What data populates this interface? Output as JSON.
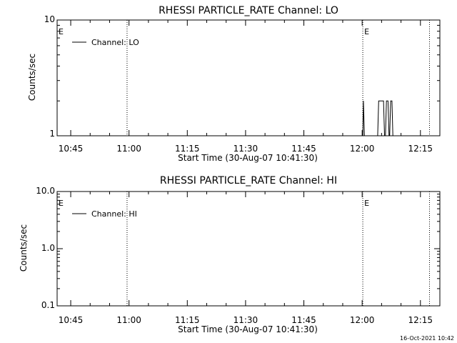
{
  "footer_timestamp": "16-Oct-2021 10:42",
  "chart_data": [
    {
      "type": "line",
      "title": "RHESSI PARTICLE_RATE Channel: LO",
      "xlabel": "Start Time (30-Aug-07 10:41:30)",
      "ylabel": "Counts/sec",
      "y_scale": "log",
      "ylim": [
        1,
        10
      ],
      "ytick_labels": [
        "1",
        "10"
      ],
      "xlim": [
        "10:41:30",
        "12:20:00"
      ],
      "xtick_labels": [
        "10:45",
        "11:00",
        "11:15",
        "11:30",
        "11:45",
        "12:00",
        "12:15"
      ],
      "legend": {
        "placement": "top-left",
        "entries": [
          "Channel: LO"
        ]
      },
      "event_markers": [
        {
          "label": "E",
          "time": "10:41:30",
          "line": false
        },
        {
          "label": "",
          "time": "10:59:30",
          "line": true
        },
        {
          "label": "E",
          "time": "12:00:10",
          "line": true
        },
        {
          "label": "",
          "time": "12:17:20",
          "line": true
        }
      ],
      "series": [
        {
          "name": "Channel: LO",
          "points": [
            [
              "12:00:10",
              1
            ],
            [
              "12:00:20",
              2
            ],
            [
              "12:00:35",
              1
            ],
            [
              "12:01:00",
              1
            ],
            [
              "12:04:00",
              1
            ],
            [
              "12:04:15",
              2
            ],
            [
              "12:05:30",
              2
            ],
            [
              "12:05:45",
              1
            ],
            [
              "12:06:00",
              1
            ],
            [
              "12:06:15",
              2
            ],
            [
              "12:06:40",
              2
            ],
            [
              "12:06:55",
              1
            ],
            [
              "12:07:05",
              1
            ],
            [
              "12:07:20",
              2
            ],
            [
              "12:07:40",
              2
            ],
            [
              "12:07:55",
              1
            ],
            [
              "12:08:10",
              1
            ]
          ]
        }
      ]
    },
    {
      "type": "line",
      "title": "RHESSI PARTICLE_RATE Channel: HI",
      "xlabel": "Start Time (30-Aug-07 10:41:30)",
      "ylabel": "Counts/sec",
      "y_scale": "log",
      "ylim": [
        0.1,
        10
      ],
      "ytick_labels": [
        "0.1",
        "1.0",
        "10.0"
      ],
      "xlim": [
        "10:41:30",
        "12:20:00"
      ],
      "xtick_labels": [
        "10:45",
        "11:00",
        "11:15",
        "11:30",
        "11:45",
        "12:00",
        "12:15"
      ],
      "legend": {
        "placement": "top-left",
        "entries": [
          "Channel: HI"
        ]
      },
      "event_markers": [
        {
          "label": "E",
          "time": "10:41:30",
          "line": false
        },
        {
          "label": "",
          "time": "10:59:30",
          "line": true
        },
        {
          "label": "E",
          "time": "12:00:10",
          "line": true
        },
        {
          "label": "",
          "time": "12:17:20",
          "line": true
        }
      ],
      "series": [
        {
          "name": "Channel: HI",
          "points": []
        }
      ]
    }
  ]
}
